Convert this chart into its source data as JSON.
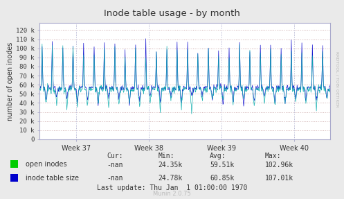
{
  "title": "Inode table usage - by month",
  "ylabel": "number of open inodes",
  "plot_bg_color": "#FFFFFF",
  "outer_bg": "#EAEAEA",
  "grid_color": "#DDAAAA",
  "grid_color2": "#AAAADD",
  "x_tick_labels": [
    "Week 37",
    "Week 38",
    "Week 39",
    "Week 40"
  ],
  "ylim": [
    0,
    128000
  ],
  "yticks": [
    0,
    10000,
    20000,
    30000,
    40000,
    50000,
    60000,
    70000,
    80000,
    90000,
    100000,
    110000,
    120000
  ],
  "ytick_labels": [
    "0",
    "10 k",
    "20 k",
    "30 k",
    "40 k",
    "50 k",
    "60 k",
    "70 k",
    "80 k",
    "90 k",
    "100 k",
    "110 k",
    "120 k"
  ],
  "line_open_color": "#00AAAA",
  "line_table_color": "#0000CC",
  "legend": [
    {
      "label": "open inodes",
      "color": "#00CC00"
    },
    {
      "label": "inode table size",
      "color": "#0000CC"
    }
  ],
  "table_headers": [
    "Cur:",
    "Min:",
    "Avg:",
    "Max:"
  ],
  "table_row1": [
    "-nan",
    "24.35k",
    "59.51k",
    "102.96k"
  ],
  "table_row2": [
    "-nan",
    "24.78k",
    "60.85k",
    "107.01k"
  ],
  "last_update": "Last update: Thu Jan  1 01:00:00 1970",
  "munin_version": "Munin 2.0.75",
  "rrdtool_label": "RRDTOOL / TOBI OETIKER",
  "title_color": "#333333",
  "axis_color": "#333333",
  "tick_color": "#333333",
  "spine_color": "#AAAACC"
}
